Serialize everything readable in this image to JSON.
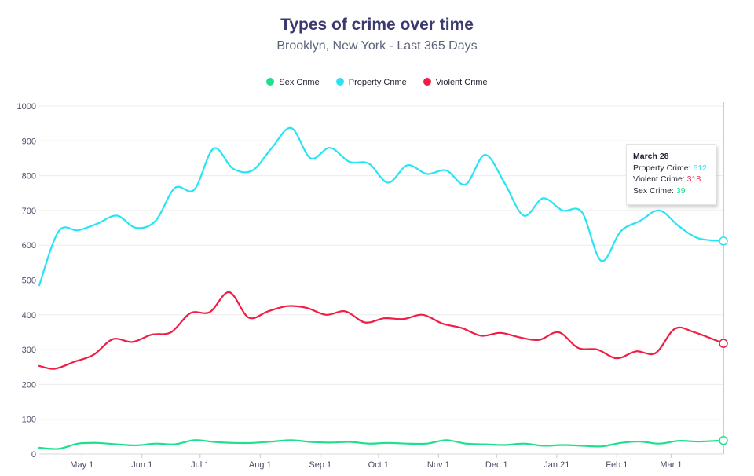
{
  "chart_data": {
    "type": "line",
    "title": "Types of crime over time",
    "subtitle": "Brooklyn, New York - Last 365 Days",
    "legend": [
      {
        "name": "Sex Crime",
        "color": "#1de08a"
      },
      {
        "name": "Property Crime",
        "color": "#27e4f4"
      },
      {
        "name": "Violent Crime",
        "color": "#f01d45"
      }
    ],
    "legend_position": "top-center",
    "ylim": [
      0,
      1000
    ],
    "yticks": [
      0,
      100,
      200,
      300,
      400,
      500,
      600,
      700,
      800,
      900,
      1000
    ],
    "xlim": [
      "2020-04-09",
      "2021-03-28"
    ],
    "xticks": [
      {
        "date": "2020-05-01",
        "label": "May 1"
      },
      {
        "date": "2020-06-01",
        "label": "Jun 1"
      },
      {
        "date": "2020-07-01",
        "label": "Jul 1"
      },
      {
        "date": "2020-08-01",
        "label": "Aug 1"
      },
      {
        "date": "2020-09-01",
        "label": "Sep 1"
      },
      {
        "date": "2020-10-01",
        "label": "Oct 1"
      },
      {
        "date": "2020-11-01",
        "label": "Nov 1"
      },
      {
        "date": "2020-12-01",
        "label": "Dec 1"
      },
      {
        "date": "2021-01-01",
        "label": "Jan 21"
      },
      {
        "date": "2021-02-01",
        "label": "Feb 1"
      },
      {
        "date": "2021-03-01",
        "label": "Mar 1"
      }
    ],
    "grid": {
      "horizontal": true,
      "vertical": false
    },
    "series": [
      {
        "name": "Property Crime",
        "color": "#27e4f4",
        "points": [
          [
            "2020-04-09",
            485
          ],
          [
            "2020-04-19",
            640
          ],
          [
            "2020-04-29",
            643
          ],
          [
            "2020-05-09",
            662
          ],
          [
            "2020-05-19",
            685
          ],
          [
            "2020-05-29",
            650
          ],
          [
            "2020-06-08",
            670
          ],
          [
            "2020-06-18",
            765
          ],
          [
            "2020-06-28",
            760
          ],
          [
            "2020-07-08",
            878
          ],
          [
            "2020-07-18",
            820
          ],
          [
            "2020-07-28",
            815
          ],
          [
            "2020-08-07",
            880
          ],
          [
            "2020-08-17",
            937
          ],
          [
            "2020-08-27",
            850
          ],
          [
            "2020-09-06",
            880
          ],
          [
            "2020-09-16",
            840
          ],
          [
            "2020-09-26",
            835
          ],
          [
            "2020-10-06",
            780
          ],
          [
            "2020-10-16",
            830
          ],
          [
            "2020-10-26",
            805
          ],
          [
            "2020-11-05",
            815
          ],
          [
            "2020-11-15",
            775
          ],
          [
            "2020-11-25",
            860
          ],
          [
            "2020-12-05",
            780
          ],
          [
            "2020-12-15",
            685
          ],
          [
            "2020-12-25",
            735
          ],
          [
            "2021-01-04",
            700
          ],
          [
            "2021-01-14",
            695
          ],
          [
            "2021-01-24",
            555
          ],
          [
            "2021-02-03",
            640
          ],
          [
            "2021-02-13",
            670
          ],
          [
            "2021-02-23",
            700
          ],
          [
            "2021-03-05",
            655
          ],
          [
            "2021-03-15",
            620
          ],
          [
            "2021-03-28",
            612
          ]
        ]
      },
      {
        "name": "Violent Crime",
        "color": "#f01d45",
        "points": [
          [
            "2020-04-09",
            253
          ],
          [
            "2020-04-17",
            245
          ],
          [
            "2020-04-27",
            265
          ],
          [
            "2020-05-07",
            285
          ],
          [
            "2020-05-17",
            330
          ],
          [
            "2020-05-27",
            322
          ],
          [
            "2020-06-06",
            343
          ],
          [
            "2020-06-16",
            350
          ],
          [
            "2020-06-26",
            405
          ],
          [
            "2020-07-06",
            408
          ],
          [
            "2020-07-16",
            465
          ],
          [
            "2020-07-26",
            392
          ],
          [
            "2020-08-05",
            410
          ],
          [
            "2020-08-15",
            425
          ],
          [
            "2020-08-25",
            420
          ],
          [
            "2020-09-04",
            400
          ],
          [
            "2020-09-14",
            410
          ],
          [
            "2020-09-24",
            378
          ],
          [
            "2020-10-04",
            390
          ],
          [
            "2020-10-14",
            388
          ],
          [
            "2020-10-24",
            400
          ],
          [
            "2020-11-03",
            375
          ],
          [
            "2020-11-13",
            362
          ],
          [
            "2020-11-23",
            340
          ],
          [
            "2020-12-03",
            348
          ],
          [
            "2020-12-13",
            335
          ],
          [
            "2020-12-23",
            328
          ],
          [
            "2021-01-02",
            350
          ],
          [
            "2021-01-12",
            305
          ],
          [
            "2021-01-22",
            300
          ],
          [
            "2021-02-01",
            275
          ],
          [
            "2021-02-11",
            295
          ],
          [
            "2021-02-21",
            290
          ],
          [
            "2021-03-03",
            360
          ],
          [
            "2021-03-13",
            350
          ],
          [
            "2021-03-28",
            318
          ]
        ]
      },
      {
        "name": "Sex Crime",
        "color": "#1de08a",
        "points": [
          [
            "2020-04-09",
            18
          ],
          [
            "2020-04-19",
            15
          ],
          [
            "2020-04-29",
            30
          ],
          [
            "2020-05-09",
            32
          ],
          [
            "2020-05-19",
            28
          ],
          [
            "2020-05-29",
            25
          ],
          [
            "2020-06-08",
            30
          ],
          [
            "2020-06-18",
            28
          ],
          [
            "2020-06-28",
            40
          ],
          [
            "2020-07-08",
            35
          ],
          [
            "2020-07-18",
            32
          ],
          [
            "2020-07-28",
            32
          ],
          [
            "2020-08-07",
            36
          ],
          [
            "2020-08-17",
            40
          ],
          [
            "2020-08-27",
            35
          ],
          [
            "2020-09-06",
            33
          ],
          [
            "2020-09-16",
            35
          ],
          [
            "2020-09-26",
            30
          ],
          [
            "2020-10-06",
            32
          ],
          [
            "2020-10-16",
            30
          ],
          [
            "2020-10-26",
            30
          ],
          [
            "2020-11-05",
            40
          ],
          [
            "2020-11-15",
            30
          ],
          [
            "2020-11-25",
            28
          ],
          [
            "2020-12-05",
            26
          ],
          [
            "2020-12-15",
            30
          ],
          [
            "2020-12-25",
            24
          ],
          [
            "2021-01-04",
            26
          ],
          [
            "2021-01-14",
            24
          ],
          [
            "2021-01-24",
            22
          ],
          [
            "2021-02-03",
            32
          ],
          [
            "2021-02-13",
            36
          ],
          [
            "2021-02-23",
            30
          ],
          [
            "2021-03-05",
            38
          ],
          [
            "2021-03-15",
            36
          ],
          [
            "2021-03-28",
            39
          ]
        ]
      }
    ],
    "tooltip": {
      "date": "2021-03-28",
      "title": "March 28",
      "property_label": "Property Crime:",
      "property_value": "612",
      "violent_label": "Violent Crime:",
      "violent_value": "318",
      "sex_label": "Sex Crime:",
      "sex_value": "39"
    }
  }
}
